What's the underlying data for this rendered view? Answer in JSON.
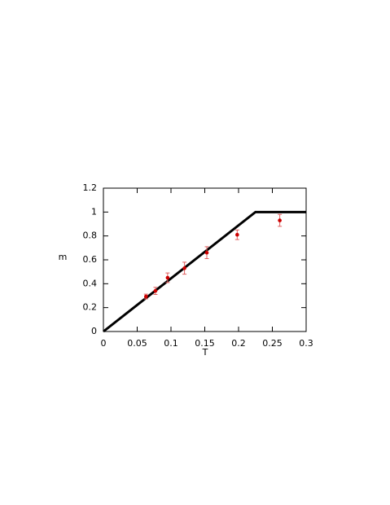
{
  "chart_data": {
    "type": "scatter",
    "xlabel": "T",
    "ylabel": "m",
    "x": [
      0.063,
      0.077,
      0.095,
      0.12,
      0.153,
      0.198,
      0.261
    ],
    "values": [
      0.293,
      0.34,
      0.45,
      0.53,
      0.66,
      0.81,
      0.93
    ],
    "errors": [
      0.02,
      0.03,
      0.04,
      0.05,
      0.05,
      0.04,
      0.05
    ],
    "color": "#cc0000",
    "error_color": "#e06060",
    "line": {
      "x": [
        0,
        0.225,
        0.3
      ],
      "values": [
        0,
        1,
        1
      ],
      "color": "#000000"
    },
    "xlim": [
      0,
      0.3
    ],
    "xticks": [
      0,
      0.05,
      0.1,
      0.15,
      0.2,
      0.25,
      0.3
    ],
    "ylim": [
      0,
      1.2
    ],
    "yticks": [
      0,
      0.2,
      0.4,
      0.6,
      0.8,
      1,
      1.2
    ]
  }
}
